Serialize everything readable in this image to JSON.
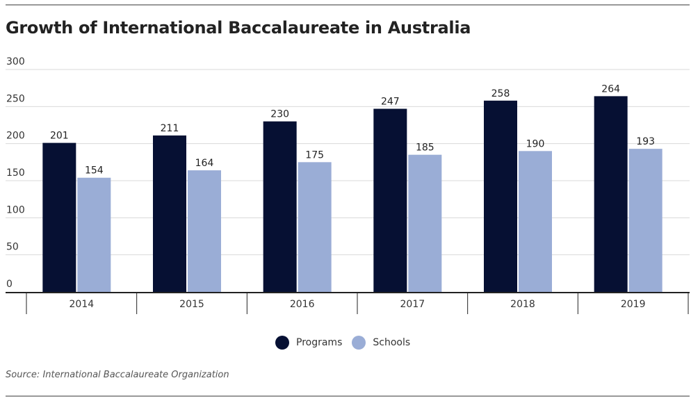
{
  "title": "Growth of International Baccalaureate in Australia",
  "source": "Source: International Baccalaureate Organization",
  "colors": {
    "programs": "#061033",
    "schools": "#9aadd6",
    "grid": "#d9d9d9",
    "axis": "#222222"
  },
  "chart_data": {
    "type": "bar",
    "title": "Growth of International Baccalaureate in Australia",
    "categories": [
      "2014",
      "2015",
      "2016",
      "2017",
      "2018",
      "2019"
    ],
    "series": [
      {
        "name": "Programs",
        "values": [
          201,
          211,
          230,
          247,
          258,
          264
        ]
      },
      {
        "name": "Schools",
        "values": [
          154,
          164,
          175,
          185,
          190,
          193
        ]
      }
    ],
    "ylim": [
      0,
      300
    ],
    "yticks": [
      0,
      50,
      100,
      150,
      200,
      250,
      300
    ],
    "grid": true,
    "legend": "bottom",
    "data_labels": true
  }
}
